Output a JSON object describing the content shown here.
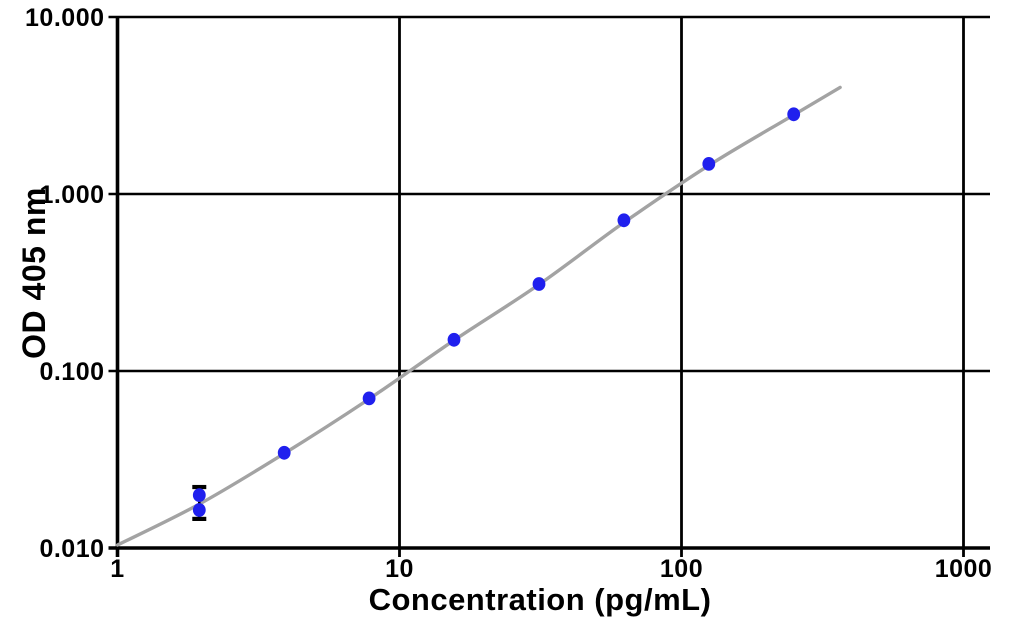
{
  "figure": {
    "background": "#ffffff"
  },
  "chart_data": {
    "type": "scatter",
    "title": "",
    "xlabel": "Concentration (pg/mL)",
    "ylabel": "OD 405 nm",
    "x_scale": "log",
    "y_scale": "log",
    "xlim": [
      1,
      1250
    ],
    "ylim": [
      0.01,
      10
    ],
    "grid": true,
    "legend": "none",
    "x_ticks": [
      {
        "value": 1,
        "label": "1"
      },
      {
        "value": 10,
        "label": "10"
      },
      {
        "value": 100,
        "label": "100"
      },
      {
        "value": 1000,
        "label": "1000"
      }
    ],
    "y_ticks": [
      {
        "value": 10,
        "label": "10.000"
      },
      {
        "value": 1,
        "label": "1.000"
      },
      {
        "value": 0.1,
        "label": "0.100"
      },
      {
        "value": 0.01,
        "label": "0.010"
      }
    ],
    "points": [
      {
        "x": 1.95,
        "y": 0.0199
      },
      {
        "x": 1.95,
        "y": 0.0164
      },
      {
        "x": 3.9,
        "y": 0.0345
      },
      {
        "x": 7.8,
        "y": 0.07
      },
      {
        "x": 15.6,
        "y": 0.15
      },
      {
        "x": 31.25,
        "y": 0.31
      },
      {
        "x": 62.5,
        "y": 0.71
      },
      {
        "x": 125,
        "y": 1.48
      },
      {
        "x": 250,
        "y": 2.82
      }
    ],
    "error_bars": [
      {
        "x": 1.95,
        "low": 0.0146,
        "high": 0.0221
      }
    ],
    "fit_curve": [
      [
        1,
        0.0104
      ],
      [
        1.95,
        0.0177
      ],
      [
        3.9,
        0.0342
      ],
      [
        7.8,
        0.0695
      ],
      [
        15.6,
        0.149
      ],
      [
        31.25,
        0.308
      ],
      [
        62.5,
        0.69
      ],
      [
        125,
        1.45
      ],
      [
        250,
        2.8
      ],
      [
        365,
        4.0
      ]
    ],
    "point_color": "#2020ee",
    "curve_color": "#a3a3a3",
    "grid_color": "#000000",
    "text_color": "#000000"
  }
}
